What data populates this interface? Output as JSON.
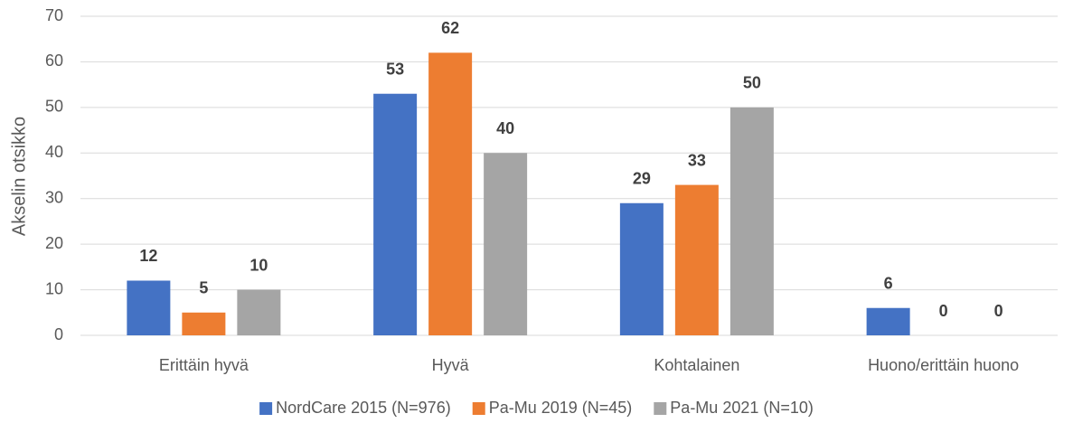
{
  "chart_data": {
    "type": "bar",
    "ylabel": "Akselin otsikko",
    "categories": [
      "Erittäin hyvä",
      "Hyvä",
      "Kohtalainen",
      "Huono/erittäin huono"
    ],
    "series": [
      {
        "name": "NordCare 2015 (N=976)",
        "color": "#4472c4",
        "values": [
          12,
          53,
          29,
          6
        ]
      },
      {
        "name": "Pa-Mu 2019 (N=45)",
        "color": "#ed7d31",
        "values": [
          5,
          62,
          33,
          0
        ]
      },
      {
        "name": "Pa-Mu 2021 (N=10)",
        "color": "#a5a5a5",
        "values": [
          10,
          40,
          50,
          0
        ]
      }
    ],
    "ylim": [
      0,
      70
    ],
    "yticks": [
      0,
      10,
      20,
      30,
      40,
      50,
      60,
      70
    ],
    "grid": true,
    "legend": "bottom"
  }
}
